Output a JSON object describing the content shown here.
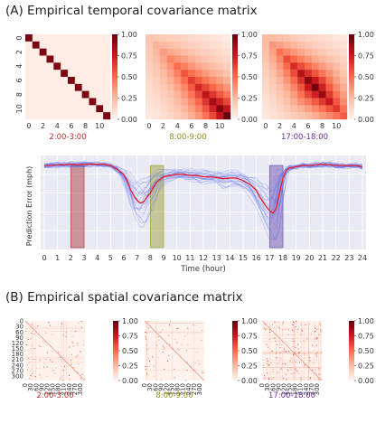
{
  "section_a": {
    "title": "(A) Empirical temporal covariance matrix"
  },
  "section_b": {
    "title": "(B) Empirical spatial covariance matrix"
  },
  "colors": {
    "slot_night": "#b5312f",
    "slot_morning": "#8d8d1f",
    "slot_evening": "#6a2d9a",
    "mean_line": "#e8202a",
    "sample_lines": "#5b6df0",
    "band_night": "#b04a4a",
    "band_morning": "#a8a84a",
    "band_evening": "#7b5fb5"
  },
  "chart_data": [
    {
      "type": "heatmap",
      "label": "2:00-3:00",
      "ticks": [
        "0",
        "2",
        "4",
        "6",
        "8",
        "10"
      ],
      "xticks": [
        "0",
        "2",
        "4",
        "6",
        "8",
        "10"
      ],
      "colorbar": [
        "1.00",
        "0.75",
        "0.50",
        "0.25",
        "0.00"
      ],
      "size": 12,
      "pattern": "diagonal"
    },
    {
      "type": "heatmap",
      "label": "8:00-9:00",
      "xticks": [
        "0",
        "2",
        "4",
        "6",
        "8",
        "10"
      ],
      "colorbar": [
        "1.00",
        "0.75",
        "0.50",
        "0.25",
        "0.00"
      ],
      "size": 12,
      "pattern": "increasing"
    },
    {
      "type": "heatmap",
      "label": "17:00-18:00",
      "xticks": [
        "0",
        "2",
        "4",
        "6",
        "8",
        "10"
      ],
      "colorbar": [
        "1.00",
        "0.75",
        "0.50",
        "0.25",
        "0.00"
      ],
      "size": 12,
      "pattern": "central"
    },
    {
      "type": "line",
      "ylabel": "Prediction Error (mph)",
      "xlabel": "Time (hour)",
      "xticks": [
        "0",
        "1",
        "2",
        "3",
        "4",
        "5",
        "6",
        "7",
        "8",
        "9",
        "10",
        "11",
        "12",
        "13",
        "14",
        "15",
        "16",
        "17",
        "18",
        "19",
        "20",
        "21",
        "22",
        "23",
        "24"
      ],
      "xlim": [
        0,
        24
      ],
      "ylim": [
        0,
        75
      ],
      "highlight_bands": [
        [
          2,
          3
        ],
        [
          8,
          9
        ],
        [
          17,
          18
        ]
      ],
      "mean_series": {
        "x": [
          0,
          0.5,
          1,
          1.5,
          2,
          2.5,
          3,
          3.5,
          4,
          4.5,
          5,
          5.5,
          6,
          6.25,
          6.5,
          6.75,
          7,
          7.25,
          7.5,
          7.75,
          8,
          8.25,
          8.5,
          9,
          9.5,
          10,
          10.5,
          11,
          11.5,
          12,
          12.5,
          13,
          13.5,
          14,
          14.5,
          15,
          15.5,
          16,
          16.25,
          16.5,
          16.75,
          17,
          17.25,
          17.5,
          17.75,
          18,
          18.25,
          18.5,
          19,
          19.5,
          20,
          20.5,
          21,
          21.5,
          22,
          22.5,
          23,
          23.5,
          24
        ],
        "y": [
          67,
          67,
          67.5,
          67.5,
          68,
          67.5,
          68,
          68,
          68,
          68,
          67,
          64,
          60,
          55,
          48,
          43,
          39,
          37,
          38,
          42,
          45,
          50,
          54,
          58,
          59,
          60,
          60,
          59,
          59,
          58,
          58,
          57.5,
          56.5,
          57,
          57,
          55,
          52,
          47,
          42,
          38,
          34,
          31,
          29,
          33,
          45,
          57,
          63,
          65,
          66,
          67,
          67,
          67.5,
          68,
          67.5,
          67,
          67,
          67,
          67,
          66
        ]
      }
    },
    {
      "type": "heatmap",
      "label": "2:00-3:00",
      "yticks": [
        "0",
        "30",
        "60",
        "90",
        "120",
        "150",
        "180",
        "210",
        "240",
        "270",
        "300"
      ],
      "xticks": [
        "0",
        "30",
        "60",
        "90",
        "120",
        "150",
        "180",
        "210",
        "240",
        "270",
        "300"
      ],
      "colorbar": [
        "1.00",
        "0.75",
        "0.50",
        "0.25",
        "0.00"
      ],
      "size": 325
    },
    {
      "type": "heatmap",
      "label": "8:00-9:00",
      "xticks": [
        "0",
        "30",
        "60",
        "90",
        "120",
        "150",
        "180",
        "210",
        "240",
        "270",
        "300"
      ],
      "colorbar": [
        "1.00",
        "0.75",
        "0.50",
        "0.25",
        "0.00"
      ],
      "size": 325
    },
    {
      "type": "heatmap",
      "label": "17:00-18:00",
      "xticks": [
        "0",
        "30",
        "60",
        "90",
        "120",
        "150",
        "180",
        "210",
        "240",
        "270",
        "300"
      ],
      "colorbar": [
        "1.00",
        "0.75",
        "0.50",
        "0.25",
        "0.00"
      ],
      "size": 325
    }
  ]
}
